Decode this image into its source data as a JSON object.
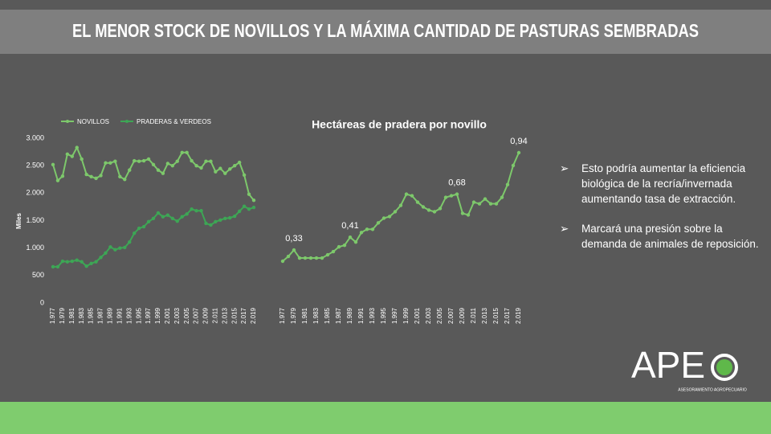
{
  "slide": {
    "title": "EL MENOR STOCK DE NOVILLOS Y LA MÁXIMA CANTIDAD DE PASTURAS SEMBRADAS",
    "bullets": [
      "Esto podría aumentar la eficiencia biológica de la recría/invernada aumentando  tasa de extracción.",
      "Marcará una presión sobre la demanda de animales de reposición."
    ],
    "logo": {
      "text": "APE",
      "tagline": "ASESORAMIENTO AGROPECUARIO"
    }
  },
  "chart_data": [
    {
      "type": "line",
      "ylabel": "Miles",
      "categories": [
        "1.977",
        null,
        "1.979",
        null,
        "1.981",
        null,
        "1.983",
        null,
        "1.985",
        null,
        "1.987",
        null,
        "1.989",
        null,
        "1.991",
        null,
        "1.993",
        null,
        "1.995",
        null,
        "1.997",
        null,
        "1.999",
        null,
        "2.001",
        null,
        "2.003",
        null,
        "2.005",
        null,
        "2.007",
        null,
        "2.009",
        null,
        "2.011",
        null,
        "2.013",
        null,
        "2.015",
        null,
        "2.017",
        null,
        "2.019"
      ],
      "series": [
        {
          "name": "NOVILLOS",
          "color": "#7dc86b",
          "values": [
            2520,
            2230,
            2310,
            2710,
            2670,
            2830,
            2620,
            2340,
            2300,
            2270,
            2320,
            2550,
            2550,
            2580,
            2300,
            2250,
            2420,
            2590,
            2580,
            2590,
            2620,
            2520,
            2420,
            2360,
            2540,
            2500,
            2580,
            2740,
            2740,
            2590,
            2500,
            2460,
            2580,
            2580,
            2390,
            2450,
            2360,
            2440,
            2500,
            2560,
            2330,
            1980,
            1870
          ]
        },
        {
          "name": "PRADERAS & VERDEOS",
          "color": "#3da655",
          "values": [
            660,
            660,
            760,
            750,
            760,
            780,
            750,
            670,
            720,
            750,
            830,
            910,
            1020,
            970,
            1000,
            1010,
            1110,
            1270,
            1360,
            1390,
            1480,
            1540,
            1640,
            1570,
            1600,
            1540,
            1490,
            1570,
            1620,
            1710,
            1680,
            1680,
            1450,
            1420,
            1480,
            1510,
            1540,
            1550,
            1580,
            1670,
            1760,
            1710,
            1740
          ]
        }
      ],
      "ylim": [
        0,
        3000
      ],
      "yticks": [
        0,
        500,
        {
          "value": 1000,
          "label": "1.000"
        },
        {
          "value": 1500,
          "label": "1.500"
        },
        {
          "value": 2000,
          "label": "2.000"
        },
        {
          "value": 2500,
          "label": "2.500"
        },
        {
          "value": 3000,
          "label": "3.000"
        }
      ],
      "legend": "top"
    },
    {
      "type": "line",
      "title": "Hectáreas de pradera por novillo",
      "color": "#7dc86b",
      "categories": [
        "1.977",
        null,
        "1.979",
        null,
        "1.981",
        null,
        "1.983",
        null,
        "1.985",
        null,
        "1.987",
        null,
        "1.989",
        null,
        "1.991",
        null,
        "1.993",
        null,
        "1.995",
        null,
        "1.997",
        null,
        "1.999",
        null,
        "2.001",
        null,
        "2.003",
        null,
        "2.005",
        null,
        "2.007",
        null,
        "2.009",
        null,
        "2.011",
        null,
        "2.013",
        null,
        "2.015",
        null,
        "2.017",
        null,
        "2.019"
      ],
      "values": [
        0.26,
        0.29,
        0.33,
        0.28,
        0.28,
        0.28,
        0.28,
        0.28,
        0.3,
        0.32,
        0.35,
        0.36,
        0.41,
        0.38,
        0.44,
        0.46,
        0.46,
        0.5,
        0.53,
        0.54,
        0.57,
        0.61,
        0.68,
        0.67,
        0.63,
        0.6,
        0.58,
        0.57,
        0.59,
        0.66,
        0.67,
        0.68,
        0.56,
        0.55,
        0.63,
        0.62,
        0.65,
        0.62,
        0.62,
        0.66,
        0.74,
        0.86,
        0.94
      ],
      "value_labels": [
        null,
        null,
        "0,33",
        null,
        null,
        null,
        null,
        null,
        null,
        null,
        null,
        null,
        "0,41",
        null,
        null,
        null,
        null,
        null,
        null,
        null,
        null,
        null,
        null,
        null,
        null,
        null,
        null,
        null,
        null,
        null,
        null,
        "0,68",
        null,
        null,
        null,
        null,
        null,
        null,
        null,
        null,
        null,
        null,
        "0,94"
      ]
    }
  ]
}
